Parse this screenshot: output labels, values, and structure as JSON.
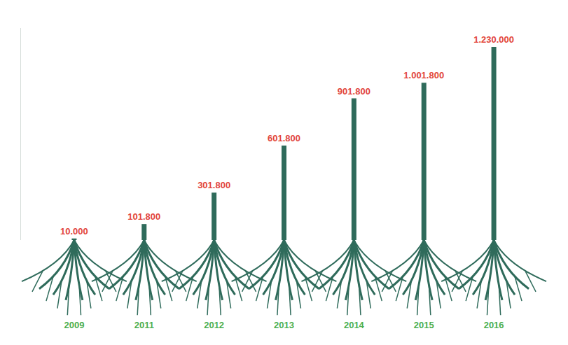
{
  "chart_data": {
    "type": "bar",
    "categories": [
      "2009",
      "2011",
      "2012",
      "2013",
      "2014",
      "2015",
      "2016"
    ],
    "values": [
      10000,
      101800,
      301800,
      601800,
      901800,
      1001800,
      1230000
    ],
    "value_labels": [
      "10.000",
      "101.800",
      "301.800",
      "601.800",
      "901.800",
      "1.001.800",
      "1.230.000"
    ],
    "color": "#2f6b5b",
    "ylim": [
      0,
      1350000
    ],
    "grid": false,
    "data_labels": true,
    "tick_labels": "x"
  }
}
